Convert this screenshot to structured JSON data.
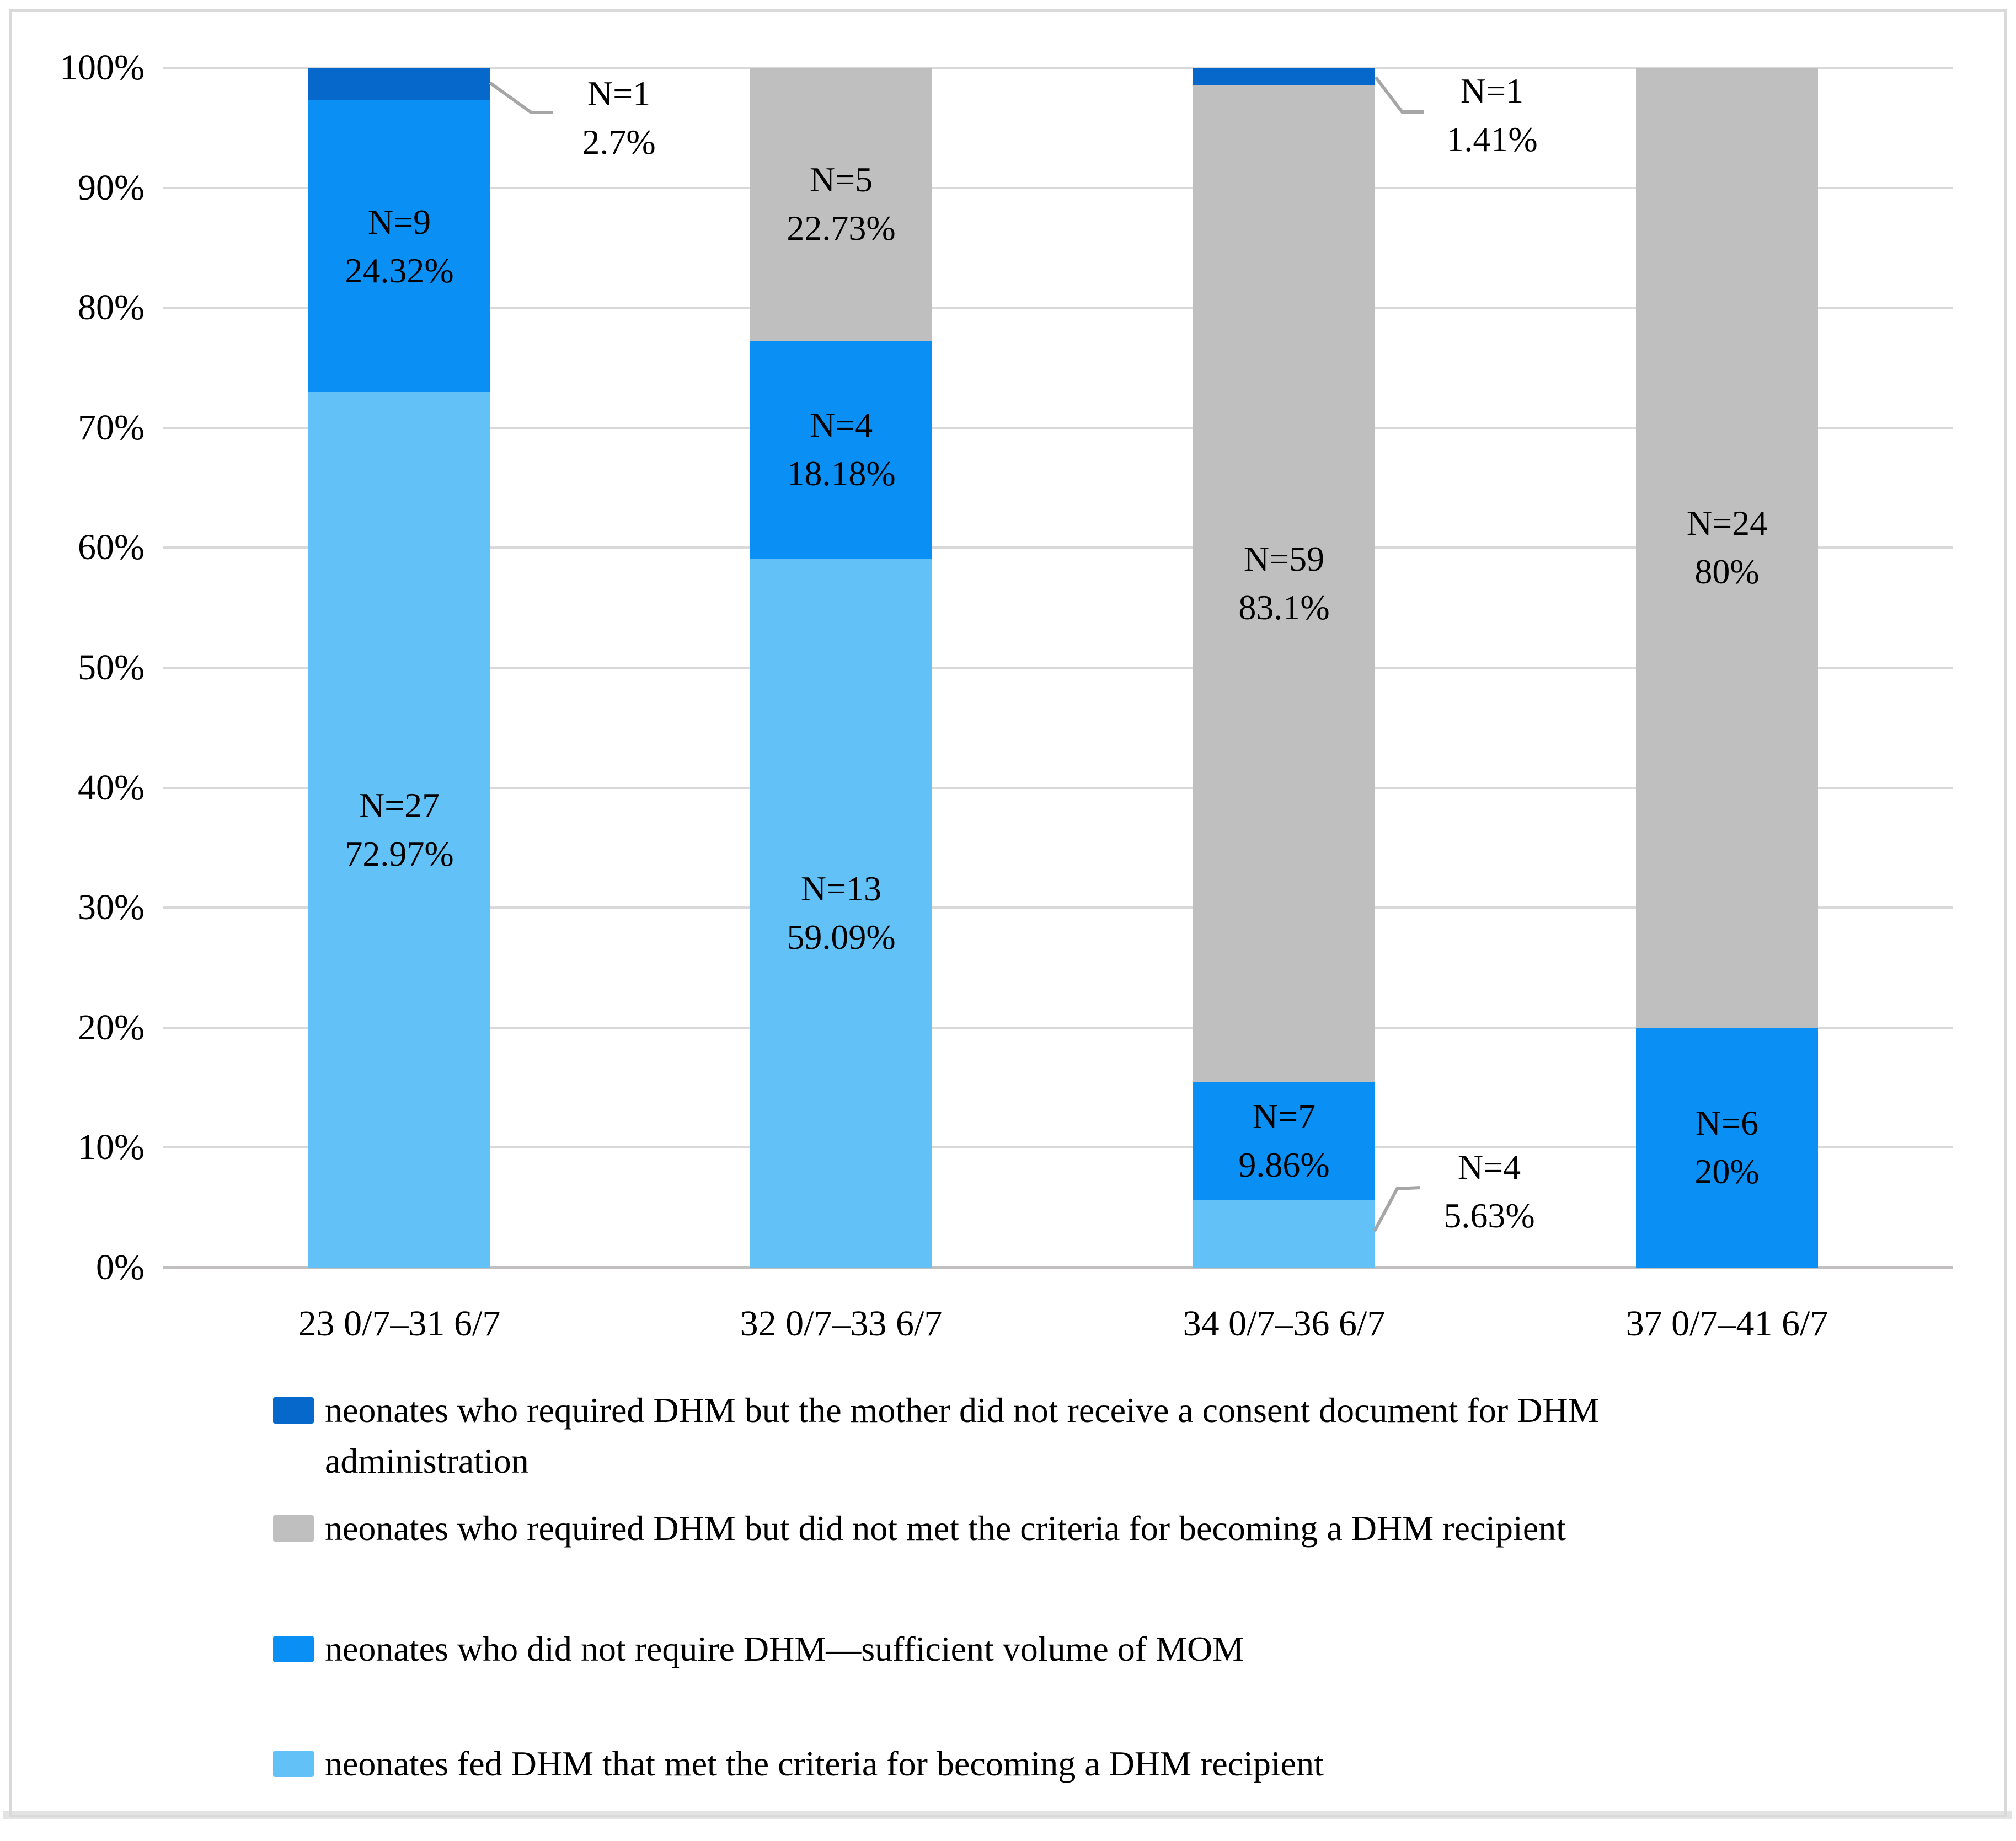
{
  "chart_data": {
    "type": "bar",
    "stacked": true,
    "value_unit": "percent",
    "title": "",
    "xlabel": "",
    "ylabel": "",
    "categories": [
      "23 0/7–31 6/7",
      "32 0/7–33 6/7",
      "34 0/7–36 6/7",
      "37 0/7–41 6/7"
    ],
    "series": [
      {
        "key": "fed",
        "name": "neonates fed DHM that met the criteria for becoming a DHM recipient",
        "color": "#62C1F7",
        "values": [
          72.97,
          59.09,
          5.63,
          0
        ],
        "counts": [
          27,
          13,
          4,
          null
        ]
      },
      {
        "key": "mom",
        "name": "neonates who did not require DHM—sufficient volume of MOM",
        "color": "#0A90F5",
        "values": [
          24.32,
          18.18,
          9.86,
          20
        ],
        "counts": [
          9,
          4,
          7,
          6
        ]
      },
      {
        "key": "criteria",
        "name": "neonates who required DHM but did not met the criteria for becoming a DHM recipient",
        "color": "#BFBFBF",
        "values": [
          0,
          22.73,
          83.1,
          80
        ],
        "counts": [
          null,
          5,
          59,
          24
        ]
      },
      {
        "key": "consent",
        "name": "neonates who required DHM but the mother did not receive a consent document for DHM administration",
        "color": "#0768CB",
        "values": [
          2.7,
          0,
          1.41,
          0
        ],
        "counts": [
          1,
          null,
          1,
          null
        ]
      }
    ],
    "ylim": [
      0,
      100
    ],
    "yticks": [
      "0%",
      "10%",
      "20%",
      "30%",
      "40%",
      "50%",
      "60%",
      "70%",
      "80%",
      "90%",
      "100%"
    ],
    "grid": true,
    "legend_position": "bottom",
    "data_labels": [
      {
        "cat": 0,
        "series": "fed",
        "lines": [
          "N=27",
          "72.97%"
        ]
      },
      {
        "cat": 0,
        "series": "mom",
        "lines": [
          "N=9",
          "24.32%"
        ]
      },
      {
        "cat": 1,
        "series": "fed",
        "lines": [
          "N=13",
          "59.09%"
        ]
      },
      {
        "cat": 1,
        "series": "mom",
        "lines": [
          "N=4",
          "18.18%"
        ]
      },
      {
        "cat": 1,
        "series": "criteria",
        "lines": [
          "N=5",
          "22.73%"
        ]
      },
      {
        "cat": 2,
        "series": "mom",
        "lines": [
          "N=7",
          "9.86%"
        ]
      },
      {
        "cat": 2,
        "series": "criteria",
        "lines": [
          "N=59",
          "83.1%"
        ]
      },
      {
        "cat": 3,
        "series": "mom",
        "lines": [
          "N=6",
          "20%"
        ]
      },
      {
        "cat": 3,
        "series": "criteria",
        "lines": [
          "N=24",
          "80%"
        ]
      }
    ],
    "callouts": [
      {
        "id": "c1",
        "cat": 0,
        "series": "consent",
        "lines": [
          "N=1",
          "2.7%"
        ]
      },
      {
        "id": "c2",
        "cat": 2,
        "series": "consent",
        "lines": [
          "N=1",
          "1.41%"
        ]
      },
      {
        "id": "c3",
        "cat": 2,
        "series": "fed",
        "lines": [
          "N=4",
          "5.63%"
        ]
      }
    ]
  },
  "legend": {
    "items": [
      {
        "color": "#0768CB",
        "label": "neonates who required DHM but the mother did not receive a consent document for DHM administration"
      },
      {
        "color": "#BFBFBF",
        "label": "neonates who required DHM but did not met the criteria for becoming a DHM recipient"
      },
      {
        "color": "#0A90F5",
        "label": "neonates who did not require DHM—sufficient volume of MOM"
      },
      {
        "color": "#62C1F7",
        "label": "neonates fed DHM that met the criteria for becoming a DHM recipient"
      }
    ]
  },
  "colors": {
    "grid": "#D9D9D9",
    "axis_line": "#C1BFBF",
    "leader_line": "#A6A6A6",
    "frame_border": "#D9D9D9",
    "text": "#000000"
  }
}
